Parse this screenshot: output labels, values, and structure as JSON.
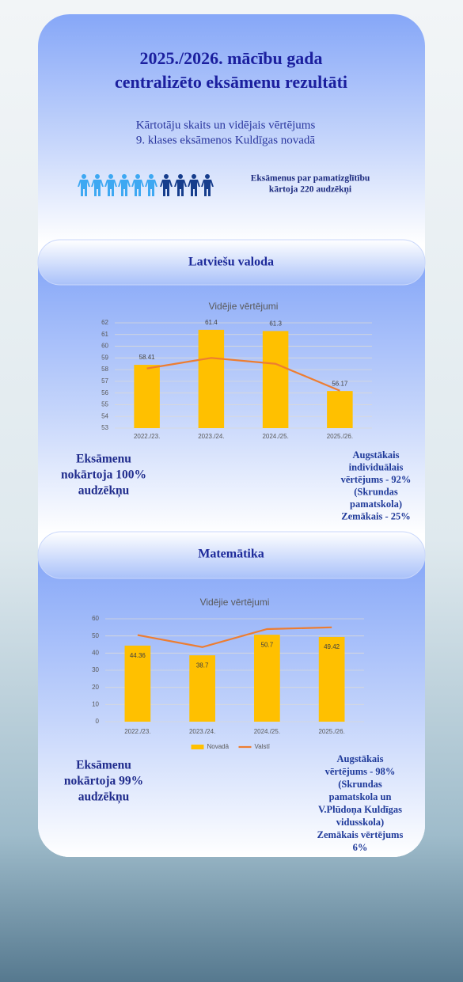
{
  "header": {
    "title_lines": [
      "2025./2026. mācību gada",
      "centralizēto eksāmenu rezultāti"
    ],
    "subtitle_lines": [
      "Kārtotāju skaits un vidējais vērtējums",
      "9. klases  eksāmenos Kuldīgas novadā"
    ],
    "note_lines": [
      "Eksāmenus  par pamatizglītību",
      "kārtoja 220 audzēkņi"
    ]
  },
  "sections": [
    {
      "heading": "Latviešu valoda",
      "left_lines": [
        "Eksāmenu",
        "nokārtoja 100%",
        "audzēkņu"
      ],
      "right_lines": [
        "Augstākais",
        "individuālais",
        "vērtējums - 92%",
        "(Skrundas",
        "pamatskola)",
        "Zemākais - 25%"
      ]
    },
    {
      "heading": "Matemātika",
      "left_lines": [
        "Eksāmenu",
        "nokārtoja 99%",
        "audzēkņu"
      ],
      "right_lines": [
        "Augstākais",
        "vērtējums - 98%",
        "(Skrundas",
        "pamatskola un",
        "V.Plūdoņa Kuldīgas",
        "vidusskola)",
        "Zemākais vērtējums",
        "6%"
      ]
    }
  ],
  "chart_data": [
    {
      "type": "bar",
      "title": "Vidējie vērtējumi",
      "categories": [
        "2022./23.",
        "2023./24.",
        "2024./25.",
        "2025./26."
      ],
      "ylim": [
        53,
        62
      ],
      "yticks": [
        53,
        54,
        55,
        56,
        57,
        58,
        59,
        60,
        61,
        62
      ],
      "grid": true,
      "series": [
        {
          "type": "bar",
          "color": "#ffc000",
          "values": [
            58.41,
            61.4,
            61.3,
            56.17
          ],
          "data_labels": true
        },
        {
          "type": "line",
          "color": "#ed7d31",
          "values": [
            58.1,
            59.0,
            58.5,
            56.2
          ]
        }
      ]
    },
    {
      "type": "bar",
      "title": "Vidējie vērtējumi",
      "categories": [
        "2022./23.",
        "2023./24.",
        "2024./25.",
        "2025./26."
      ],
      "ylim": [
        0,
        60
      ],
      "yticks": [
        0,
        10,
        20,
        30,
        40,
        50,
        60
      ],
      "grid": true,
      "legend": "bottom",
      "series": [
        {
          "type": "bar",
          "name": "Novadā",
          "color": "#ffc000",
          "values": [
            44.36,
            38.7,
            50.7,
            49.42
          ],
          "data_labels": true
        },
        {
          "type": "line",
          "name": "Valstī",
          "color": "#ed7d31",
          "values": [
            50.5,
            43.5,
            54,
            55
          ]
        }
      ]
    }
  ]
}
